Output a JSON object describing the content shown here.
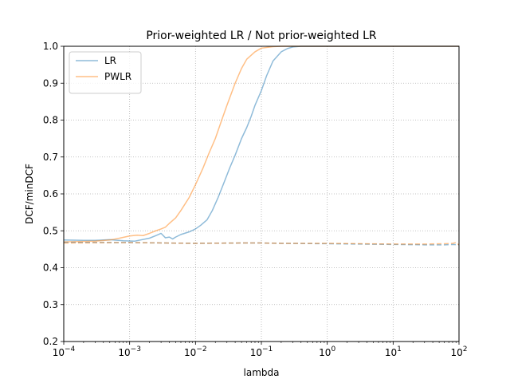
{
  "chart_data": {
    "type": "line",
    "title": "Prior-weighted LR / Not prior-weighted LR",
    "xlabel": "lambda",
    "ylabel": "DCF/minDCF",
    "xscale": "log",
    "xlim": [
      0.0001,
      100
    ],
    "ylim": [
      0.2,
      1.0
    ],
    "grid": true,
    "legend_position": "top-left",
    "x_ticks": [
      {
        "value": 0.0001,
        "base": "10",
        "exp": "−4"
      },
      {
        "value": 0.001,
        "base": "10",
        "exp": "−3"
      },
      {
        "value": 0.01,
        "base": "10",
        "exp": "−2"
      },
      {
        "value": 0.1,
        "base": "10",
        "exp": "−1"
      },
      {
        "value": 1,
        "base": "10",
        "exp": "0"
      },
      {
        "value": 10,
        "base": "10",
        "exp": "1"
      },
      {
        "value": 100,
        "base": "10",
        "exp": "2"
      }
    ],
    "y_ticks": [
      {
        "value": 0.2,
        "label": "0.2"
      },
      {
        "value": 0.3,
        "label": "0.3"
      },
      {
        "value": 0.4,
        "label": "0.4"
      },
      {
        "value": 0.5,
        "label": "0.5"
      },
      {
        "value": 0.6,
        "label": "0.6"
      },
      {
        "value": 0.7,
        "label": "0.7"
      },
      {
        "value": 0.8,
        "label": "0.8"
      },
      {
        "value": 0.9,
        "label": "0.9"
      },
      {
        "value": 1.0,
        "label": "1.0"
      }
    ],
    "series": [
      {
        "name": "LR",
        "color": "#1f77b4",
        "style": "solid",
        "opacity": 0.5,
        "x": [
          0.0001,
          0.0002,
          0.0003,
          0.0005,
          0.0008,
          0.0012,
          0.002,
          0.0025,
          0.003,
          0.0035,
          0.004,
          0.0045,
          0.005,
          0.006,
          0.008,
          0.01,
          0.012,
          0.015,
          0.018,
          0.022,
          0.027,
          0.033,
          0.04,
          0.05,
          0.06,
          0.07,
          0.08,
          0.1,
          0.12,
          0.15,
          0.2,
          0.25,
          0.3,
          0.4,
          0.5,
          1,
          10,
          100
        ],
        "y": [
          0.475,
          0.474,
          0.474,
          0.476,
          0.473,
          0.472,
          0.48,
          0.487,
          0.493,
          0.481,
          0.483,
          0.478,
          0.483,
          0.49,
          0.497,
          0.505,
          0.515,
          0.53,
          0.555,
          0.59,
          0.63,
          0.67,
          0.705,
          0.75,
          0.78,
          0.81,
          0.84,
          0.88,
          0.92,
          0.96,
          0.985,
          0.994,
          0.998,
          1.0,
          1.0,
          1.0,
          1.0,
          1.0
        ]
      },
      {
        "name": "PWLR",
        "color": "#ff7f0e",
        "style": "solid",
        "opacity": 0.5,
        "x": [
          0.0001,
          0.0002,
          0.0003,
          0.0005,
          0.0007,
          0.001,
          0.0013,
          0.0016,
          0.002,
          0.0025,
          0.003,
          0.0035,
          0.004,
          0.005,
          0.006,
          0.008,
          0.01,
          0.013,
          0.016,
          0.02,
          0.025,
          0.03,
          0.04,
          0.05,
          0.06,
          0.08,
          0.1,
          0.15,
          0.2,
          0.3,
          1,
          10,
          100
        ],
        "y": [
          0.47,
          0.471,
          0.472,
          0.475,
          0.48,
          0.486,
          0.488,
          0.487,
          0.493,
          0.5,
          0.505,
          0.51,
          0.52,
          0.535,
          0.555,
          0.59,
          0.625,
          0.67,
          0.71,
          0.75,
          0.8,
          0.84,
          0.9,
          0.94,
          0.965,
          0.985,
          0.995,
          0.999,
          1.0,
          1.0,
          1.0,
          1.0,
          1.0
        ]
      },
      {
        "name": "",
        "color": "#1f77b4",
        "style": "dashed",
        "opacity": 0.5,
        "x": [
          0.0001,
          0.001,
          0.01,
          0.05,
          0.1,
          0.2,
          1,
          10,
          30,
          60,
          80,
          100
        ],
        "y": [
          0.469,
          0.468,
          0.466,
          0.467,
          0.467,
          0.466,
          0.465,
          0.463,
          0.462,
          0.462,
          0.463,
          0.462
        ]
      },
      {
        "name": "",
        "color": "#ff7f0e",
        "style": "dashed",
        "opacity": 0.5,
        "x": [
          0.0001,
          0.001,
          0.01,
          0.05,
          0.1,
          0.2,
          1,
          10,
          30,
          60,
          80,
          90,
          100
        ],
        "y": [
          0.467,
          0.468,
          0.466,
          0.467,
          0.467,
          0.466,
          0.466,
          0.464,
          0.464,
          0.465,
          0.466,
          0.468,
          0.462
        ]
      }
    ]
  }
}
